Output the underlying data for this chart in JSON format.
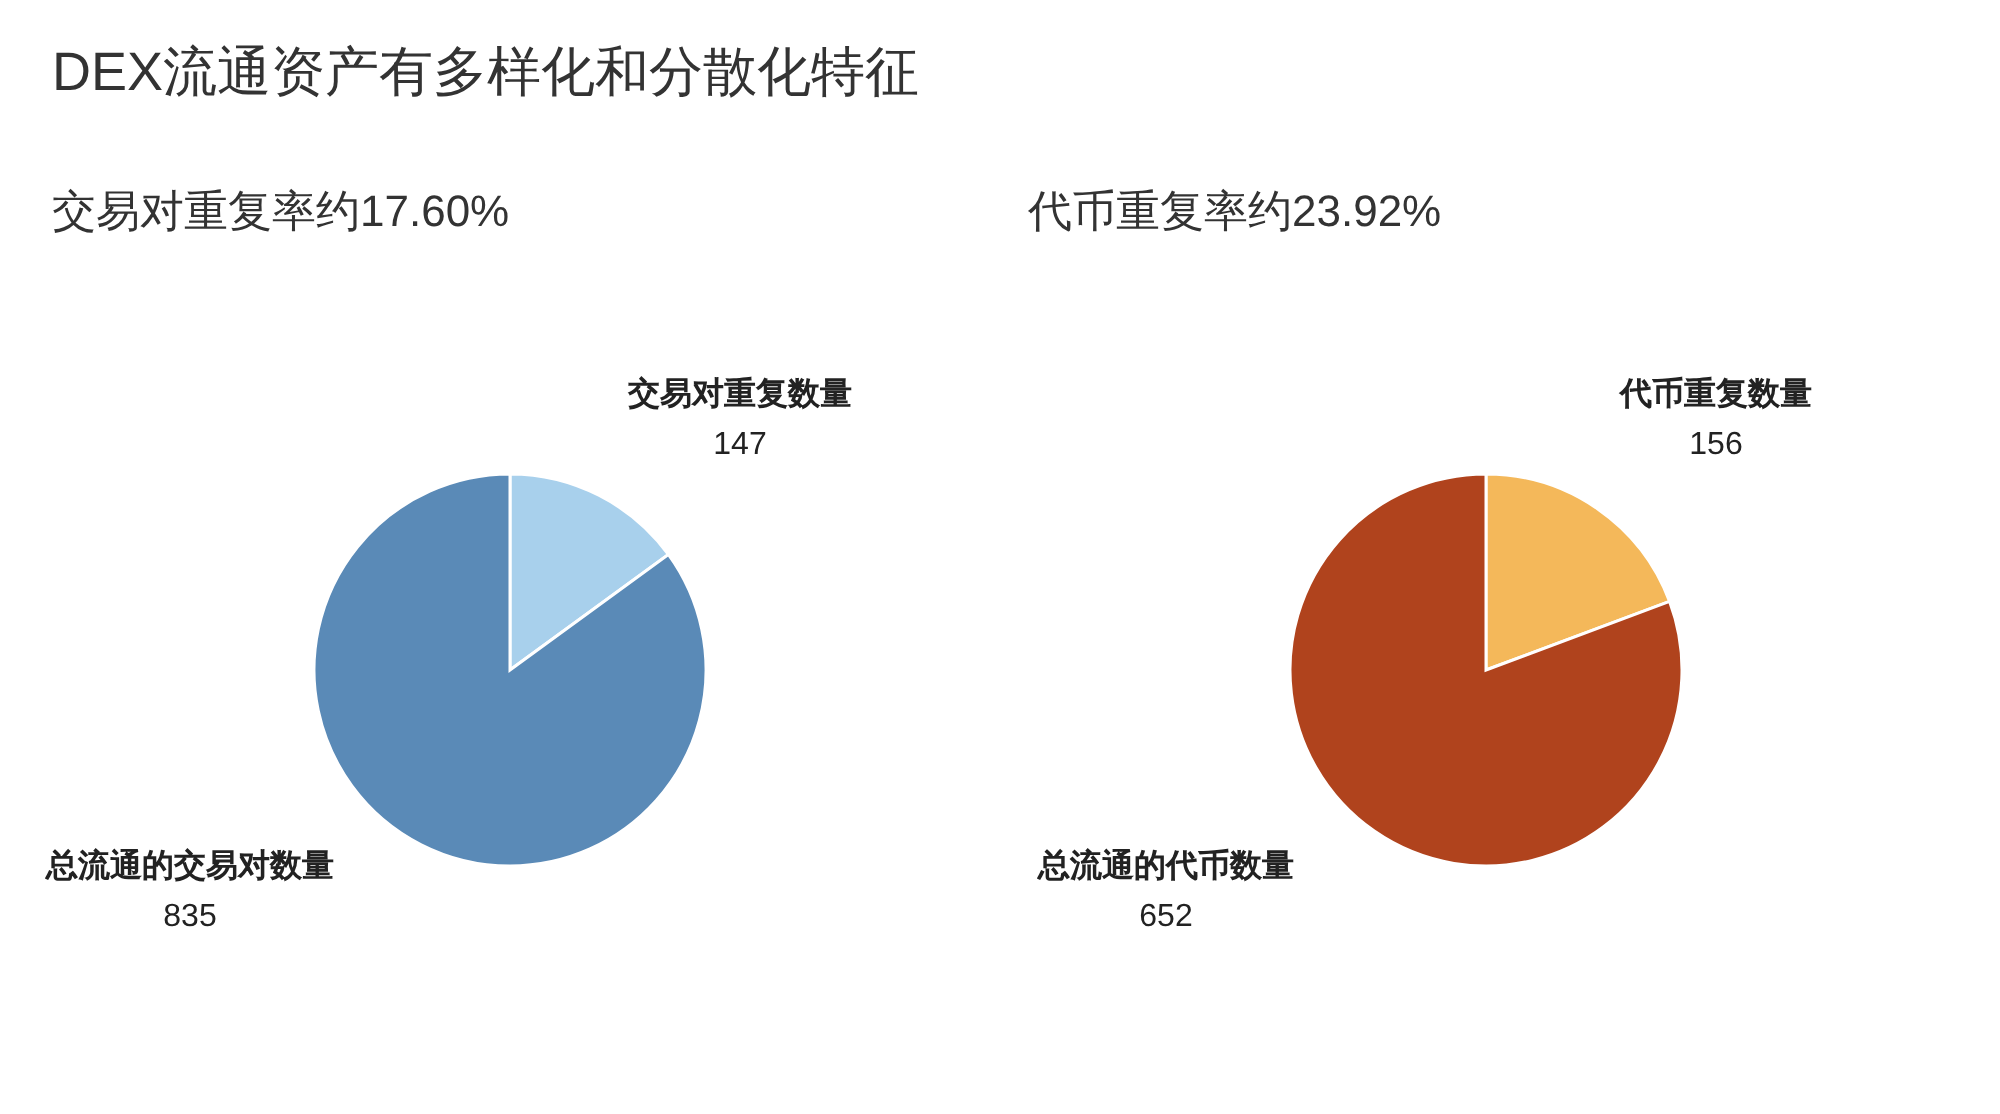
{
  "chart_data": [
    {
      "type": "pie",
      "title": "DEX流通资产有多样化和分散化特征",
      "subtitle": "交易对重复率约17.60%",
      "categories": [
        "交易对重复数量",
        "总流通的交易对数量"
      ],
      "values": [
        147,
        835
      ],
      "colors": [
        "#a8d0ec",
        "#5a8ab7"
      ],
      "data_labels": true
    },
    {
      "type": "pie",
      "subtitle": "代币重复率约23.92%",
      "categories": [
        "代币重复数量",
        "总流通的代币数量"
      ],
      "values": [
        156,
        652
      ],
      "colors": [
        "#f4b85a",
        "#b0431d"
      ],
      "data_labels": true
    }
  ]
}
